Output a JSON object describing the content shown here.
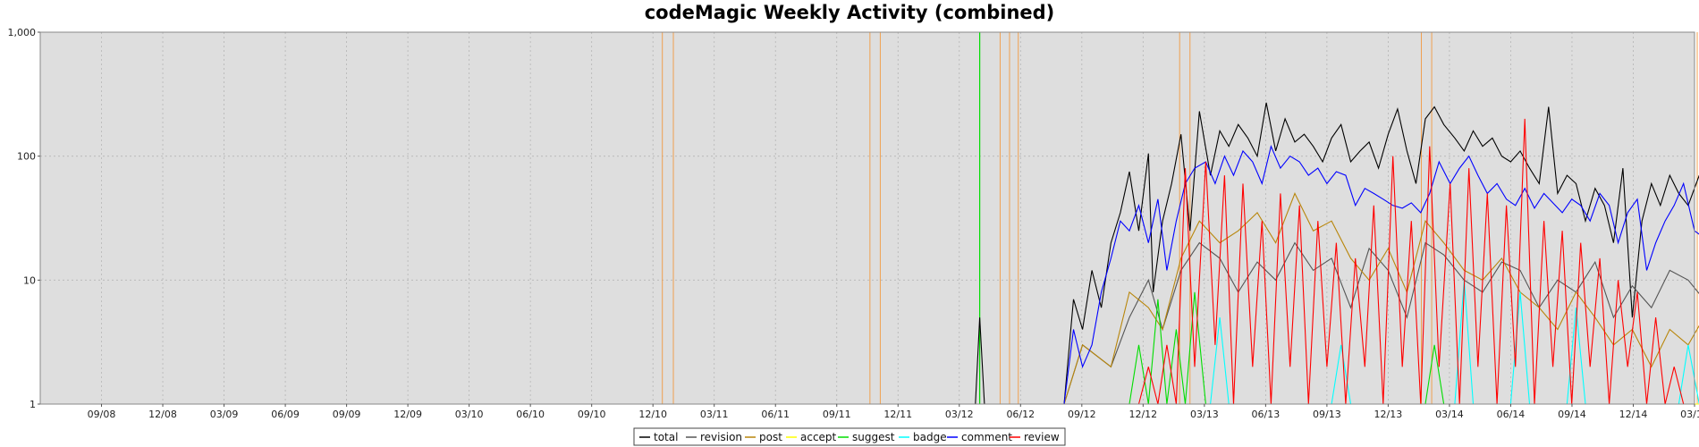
{
  "chart_data": {
    "type": "line",
    "title": "codeMagic Weekly Activity (combined)",
    "xlabel": "",
    "ylabel": "",
    "y_scale": "log",
    "ylim": [
      1,
      1000
    ],
    "y_ticks": [
      "1",
      "10",
      "100",
      "1,000"
    ],
    "x_range": [
      "2008-06",
      "2015-03"
    ],
    "x_tick_labels": [
      "09/08",
      "12/08",
      "03/09",
      "06/09",
      "09/09",
      "12/09",
      "03/10",
      "06/10",
      "09/10",
      "12/10",
      "03/11",
      "06/11",
      "09/11",
      "12/11",
      "03/12",
      "06/12",
      "09/12",
      "12/12",
      "03/13",
      "06/13",
      "09/13",
      "12/13",
      "03/14",
      "06/14",
      "09/14",
      "12/14",
      "03/15"
    ],
    "grid": true,
    "background": "#dedede",
    "legend_position": "bottom-center",
    "series_colors": {
      "total": "#000000",
      "revision": "#555555",
      "post": "#b8860b",
      "accept": "#ffff00",
      "suggest": "#00dd00",
      "badge": "#00ffff",
      "comment": "#0000ff",
      "review": "#ff0000"
    },
    "series_order": [
      "total",
      "revision",
      "post",
      "accept",
      "suggest",
      "badge",
      "comment",
      "review"
    ],
    "release_markers": {
      "orange": [
        "2010-12-15",
        "2011-01-01",
        "2011-10-20",
        "2011-11-05",
        "2012-05-01",
        "2012-05-15",
        "2012-05-28",
        "2013-01-25",
        "2013-02-10",
        "2014-01-20",
        "2014-02-05",
        "2015-03-05"
      ],
      "green": [
        "2012-04-01"
      ]
    },
    "series": [
      {
        "name": "total",
        "x": [
          "2012-03-25",
          "2012-04-01",
          "2012-04-08",
          "2012-08-05",
          "2012-08-19",
          "2012-09-02",
          "2012-09-16",
          "2012-09-30",
          "2012-10-14",
          "2012-10-28",
          "2012-11-11",
          "2012-11-25",
          "2012-12-09",
          "2012-12-16",
          "2012-12-30",
          "2013-01-13",
          "2013-01-27",
          "2013-02-10",
          "2013-02-24",
          "2013-03-10",
          "2013-03-24",
          "2013-04-07",
          "2013-04-21",
          "2013-05-05",
          "2013-05-19",
          "2013-06-02",
          "2013-06-16",
          "2013-06-30",
          "2013-07-14",
          "2013-07-28",
          "2013-08-11",
          "2013-08-25",
          "2013-09-08",
          "2013-09-22",
          "2013-10-06",
          "2013-10-20",
          "2013-11-03",
          "2013-11-17",
          "2013-12-01",
          "2013-12-15",
          "2013-12-29",
          "2014-01-12",
          "2014-01-26",
          "2014-02-09",
          "2014-02-23",
          "2014-03-09",
          "2014-03-23",
          "2014-04-06",
          "2014-04-20",
          "2014-05-04",
          "2014-05-18",
          "2014-06-01",
          "2014-06-15",
          "2014-06-29",
          "2014-07-13",
          "2014-07-27",
          "2014-08-10",
          "2014-08-24",
          "2014-09-07",
          "2014-09-21",
          "2014-10-05",
          "2014-10-19",
          "2014-11-02",
          "2014-11-16",
          "2014-11-30",
          "2014-12-14",
          "2014-12-28",
          "2015-01-11",
          "2015-01-25",
          "2015-02-08",
          "2015-02-22",
          "2015-03-08",
          "2015-03-15"
        ],
        "values": [
          1,
          5,
          1,
          1,
          7,
          4,
          12,
          6,
          20,
          35,
          75,
          25,
          105,
          8,
          30,
          60,
          150,
          25,
          230,
          70,
          160,
          120,
          180,
          140,
          100,
          270,
          110,
          200,
          130,
          150,
          120,
          90,
          140,
          180,
          90,
          110,
          130,
          80,
          150,
          240,
          110,
          60,
          200,
          250,
          180,
          140,
          110,
          160,
          120,
          140,
          100,
          90,
          110,
          80,
          60,
          250,
          50,
          70,
          60,
          30,
          55,
          40,
          20,
          80,
          5,
          30,
          60,
          40,
          70,
          50,
          40,
          70,
          30
        ]
      },
      {
        "name": "revision",
        "x": [
          "2012-08-05",
          "2012-09-02",
          "2012-10-14",
          "2012-11-11",
          "2012-12-09",
          "2012-12-30",
          "2013-01-27",
          "2013-02-24",
          "2013-03-24",
          "2013-04-21",
          "2013-05-19",
          "2013-06-16",
          "2013-07-14",
          "2013-08-11",
          "2013-09-08",
          "2013-10-06",
          "2013-11-03",
          "2013-12-01",
          "2013-12-29",
          "2014-01-26",
          "2014-02-23",
          "2014-03-23",
          "2014-04-20",
          "2014-05-18",
          "2014-06-15",
          "2014-07-13",
          "2014-08-10",
          "2014-09-07",
          "2014-10-05",
          "2014-11-02",
          "2014-11-30",
          "2014-12-28",
          "2015-01-25",
          "2015-02-22",
          "2015-03-15"
        ],
        "values": [
          1,
          3,
          2,
          5,
          10,
          4,
          12,
          20,
          15,
          8,
          14,
          10,
          20,
          12,
          15,
          6,
          18,
          12,
          5,
          20,
          16,
          10,
          8,
          14,
          12,
          6,
          10,
          8,
          14,
          5,
          9,
          6,
          12,
          10,
          7
        ]
      },
      {
        "name": "post",
        "x": [
          "2012-08-05",
          "2012-09-02",
          "2012-10-14",
          "2012-11-11",
          "2012-12-09",
          "2012-12-30",
          "2013-01-27",
          "2013-02-24",
          "2013-03-24",
          "2013-04-21",
          "2013-05-19",
          "2013-06-16",
          "2013-07-14",
          "2013-08-11",
          "2013-09-08",
          "2013-10-06",
          "2013-11-03",
          "2013-12-01",
          "2013-12-29",
          "2014-01-26",
          "2014-02-23",
          "2014-03-23",
          "2014-04-20",
          "2014-05-18",
          "2014-06-15",
          "2014-07-13",
          "2014-08-10",
          "2014-09-07",
          "2014-10-05",
          "2014-11-02",
          "2014-11-30",
          "2014-12-28",
          "2015-01-25",
          "2015-02-22",
          "2015-03-15"
        ],
        "values": [
          1,
          3,
          2,
          8,
          6,
          4,
          15,
          30,
          20,
          25,
          35,
          20,
          50,
          25,
          30,
          15,
          10,
          18,
          8,
          30,
          20,
          12,
          10,
          15,
          8,
          6,
          4,
          8,
          5,
          3,
          4,
          2,
          4,
          3,
          5
        ]
      },
      {
        "name": "accept",
        "x": [
          "2008-06-01",
          "2015-03-15"
        ],
        "values": [
          1,
          1
        ]
      },
      {
        "name": "suggest",
        "x": [
          "2012-11-11",
          "2012-11-25",
          "2012-12-09",
          "2012-12-23",
          "2013-01-06",
          "2013-01-20",
          "2013-02-03",
          "2013-02-17",
          "2013-03-03",
          "2014-01-26",
          "2014-02-09",
          "2014-02-23"
        ],
        "values": [
          1,
          3,
          1,
          7,
          1,
          4,
          1,
          8,
          1,
          1,
          3,
          1
        ]
      },
      {
        "name": "badge",
        "x": [
          "2013-03-10",
          "2013-03-24",
          "2013-04-07",
          "2013-09-08",
          "2013-09-22",
          "2013-10-06",
          "2014-03-09",
          "2014-03-23",
          "2014-04-06",
          "2014-06-01",
          "2014-06-15",
          "2014-06-29",
          "2014-08-24",
          "2014-09-07",
          "2014-09-21",
          "2015-02-08",
          "2015-02-22",
          "2015-03-08"
        ],
        "values": [
          1,
          5,
          1,
          1,
          3,
          1,
          1,
          10,
          1,
          1,
          8,
          1,
          1,
          6,
          1,
          1,
          3,
          1
        ]
      },
      {
        "name": "comment",
        "x": [
          "2012-08-05",
          "2012-08-19",
          "2012-09-02",
          "2012-09-16",
          "2012-09-30",
          "2012-10-14",
          "2012-10-28",
          "2012-11-11",
          "2012-11-25",
          "2012-12-09",
          "2012-12-23",
          "2013-01-06",
          "2013-01-20",
          "2013-02-03",
          "2013-02-17",
          "2013-03-03",
          "2013-03-17",
          "2013-03-31",
          "2013-04-14",
          "2013-04-28",
          "2013-05-12",
          "2013-05-26",
          "2013-06-09",
          "2013-06-23",
          "2013-07-07",
          "2013-07-21",
          "2013-08-04",
          "2013-08-18",
          "2013-09-01",
          "2013-09-15",
          "2013-09-29",
          "2013-10-13",
          "2013-10-27",
          "2013-11-10",
          "2013-11-24",
          "2013-12-08",
          "2013-12-22",
          "2014-01-05",
          "2014-01-19",
          "2014-02-02",
          "2014-02-16",
          "2014-03-02",
          "2014-03-16",
          "2014-03-30",
          "2014-04-13",
          "2014-04-27",
          "2014-05-11",
          "2014-05-25",
          "2014-06-08",
          "2014-06-22",
          "2014-07-06",
          "2014-07-20",
          "2014-08-03",
          "2014-08-17",
          "2014-08-31",
          "2014-09-14",
          "2014-09-28",
          "2014-10-12",
          "2014-10-26",
          "2014-11-09",
          "2014-11-23",
          "2014-12-07",
          "2014-12-21",
          "2015-01-04",
          "2015-01-18",
          "2015-02-01",
          "2015-02-15",
          "2015-03-01",
          "2015-03-15"
        ],
        "values": [
          1,
          4,
          2,
          3,
          8,
          15,
          30,
          25,
          40,
          20,
          45,
          12,
          30,
          60,
          80,
          90,
          60,
          100,
          70,
          110,
          90,
          60,
          120,
          80,
          100,
          90,
          70,
          80,
          60,
          75,
          70,
          40,
          55,
          50,
          45,
          40,
          38,
          42,
          35,
          50,
          90,
          60,
          80,
          100,
          70,
          50,
          60,
          45,
          40,
          55,
          38,
          50,
          42,
          35,
          45,
          40,
          30,
          50,
          40,
          20,
          35,
          45,
          12,
          20,
          30,
          40,
          60,
          25,
          22
        ]
      },
      {
        "name": "review",
        "x": [
          "2012-11-25",
          "2012-12-09",
          "2012-12-23",
          "2013-01-06",
          "2013-01-20",
          "2013-02-03",
          "2013-02-17",
          "2013-03-03",
          "2013-03-17",
          "2013-03-31",
          "2013-04-14",
          "2013-04-28",
          "2013-05-12",
          "2013-05-26",
          "2013-06-09",
          "2013-06-23",
          "2013-07-07",
          "2013-07-21",
          "2013-08-04",
          "2013-08-18",
          "2013-09-01",
          "2013-09-15",
          "2013-09-29",
          "2013-10-13",
          "2013-10-27",
          "2013-11-10",
          "2013-11-24",
          "2013-12-08",
          "2013-12-22",
          "2014-01-05",
          "2014-01-19",
          "2014-02-02",
          "2014-02-16",
          "2014-03-02",
          "2014-03-16",
          "2014-03-30",
          "2014-04-13",
          "2014-04-27",
          "2014-05-11",
          "2014-05-25",
          "2014-06-08",
          "2014-06-22",
          "2014-07-06",
          "2014-07-20",
          "2014-08-03",
          "2014-08-17",
          "2014-08-31",
          "2014-09-14",
          "2014-09-28",
          "2014-10-12",
          "2014-10-26",
          "2014-11-09",
          "2014-11-23",
          "2014-12-07",
          "2014-12-21",
          "2015-01-04",
          "2015-01-18",
          "2015-02-01",
          "2015-02-15"
        ],
        "values": [
          1,
          2,
          1,
          3,
          1,
          80,
          2,
          90,
          3,
          70,
          1,
          60,
          2,
          30,
          1,
          50,
          2,
          40,
          1,
          30,
          2,
          20,
          1,
          15,
          2,
          40,
          1,
          100,
          2,
          30,
          1,
          120,
          2,
          60,
          1,
          80,
          2,
          50,
          1,
          40,
          2,
          200,
          1,
          30,
          2,
          25,
          1,
          20,
          2,
          15,
          1,
          10,
          2,
          8,
          1,
          5,
          1,
          2,
          1
        ]
      }
    ]
  }
}
